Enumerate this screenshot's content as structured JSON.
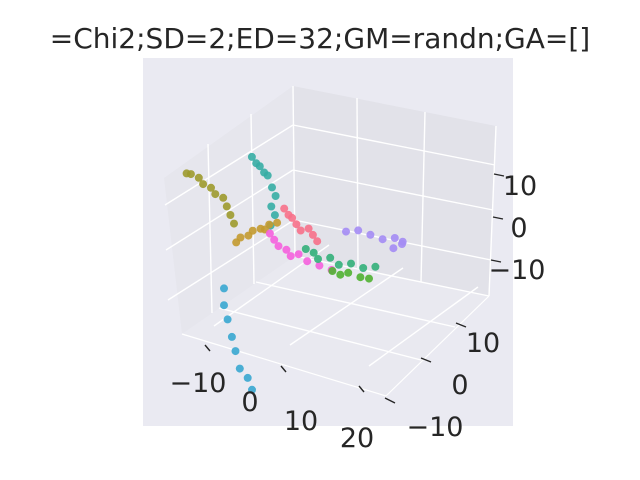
{
  "chart_data": {
    "type": "scatter",
    "projection": "3d",
    "title": "=Chi2;SD=2;ED=32;GM=randn;GA=[]",
    "axes": {
      "x": {
        "ticks": [
          -10,
          0,
          10,
          20
        ],
        "tick_labels": [
          "−10",
          "0",
          "10",
          "20"
        ]
      },
      "y": {
        "ticks": [
          -10,
          0,
          10
        ],
        "tick_labels": [
          "−10",
          "0",
          "10"
        ]
      },
      "z": {
        "ticks": [
          -10,
          0,
          10
        ],
        "tick_labels": [
          "−10",
          "0",
          "10"
        ]
      }
    },
    "grid": true,
    "legend": "none",
    "colors": {
      "pane_back": "#e3e3ea",
      "pane_side": "#e8e8ef",
      "pane_floor": "#ebebf2",
      "figure_face": "#eaeaf2",
      "grid": "#ffffff"
    },
    "series": [
      {
        "color": "#9d9a2c",
        "points": [
          [
            -14,
            -12,
            20
          ],
          [
            -13,
            -12,
            20
          ],
          [
            -12,
            -11,
            19
          ],
          [
            -11,
            -11,
            18
          ],
          [
            -10,
            -10,
            17
          ],
          [
            -9,
            -10,
            16
          ],
          [
            -8,
            -9,
            15
          ],
          [
            -8,
            -8,
            13
          ],
          [
            -8,
            -7,
            11
          ],
          [
            -8,
            -6,
            9
          ]
        ]
      },
      {
        "color": "#36ada4",
        "points": [
          [
            -3,
            -7,
            22
          ],
          [
            -2,
            -7,
            21
          ],
          [
            -2,
            -6,
            20
          ],
          [
            -1,
            -6,
            19
          ],
          [
            -1,
            -5,
            18
          ],
          [
            0,
            -5,
            16
          ],
          [
            0,
            -4,
            14
          ],
          [
            -1,
            -4,
            12
          ],
          [
            -1,
            -3,
            10
          ],
          [
            -2,
            -3,
            8
          ]
        ]
      },
      {
        "color": "#38a7d0",
        "points": [
          [
            -12,
            -4,
            -4
          ],
          [
            -12,
            -4,
            -7
          ],
          [
            -12,
            -3,
            -10
          ],
          [
            -11,
            -3,
            -13
          ],
          [
            -11,
            -2,
            -16
          ],
          [
            -10,
            -2,
            -19
          ],
          [
            -9,
            -1,
            -21
          ],
          [
            -8,
            -1,
            -23
          ]
        ]
      },
      {
        "color": "#c39a2f",
        "points": [
          [
            -10,
            -3,
            4
          ],
          [
            -9,
            -3,
            5
          ],
          [
            -8,
            -2,
            5
          ],
          [
            -7,
            -2,
            6
          ],
          [
            -6,
            -1,
            6
          ],
          [
            -5,
            -1,
            6
          ],
          [
            -4,
            -1,
            7
          ],
          [
            -3,
            0,
            7
          ]
        ]
      },
      {
        "color": "#f77189",
        "points": [
          [
            2,
            -4,
            12
          ],
          [
            3,
            -4,
            11
          ],
          [
            3,
            -3,
            10
          ],
          [
            4,
            -3,
            9
          ],
          [
            5,
            -3,
            8
          ],
          [
            6,
            -2,
            8
          ],
          [
            7,
            -2,
            7
          ],
          [
            8,
            -2,
            6
          ]
        ]
      },
      {
        "color": "#f561dd",
        "points": [
          [
            -3,
            -2,
            6
          ],
          [
            -2,
            -2,
            5
          ],
          [
            -1,
            -2,
            4
          ],
          [
            0,
            -1,
            3
          ],
          [
            1,
            -1,
            2
          ],
          [
            2,
            0,
            2
          ],
          [
            4,
            0,
            1
          ],
          [
            6,
            1,
            0
          ],
          [
            8,
            2,
            -1
          ]
        ]
      },
      {
        "color": "#33b07a",
        "points": [
          [
            2,
            2,
            2
          ],
          [
            3,
            3,
            1
          ],
          [
            4,
            3,
            0
          ],
          [
            6,
            4,
            0
          ],
          [
            8,
            4,
            -1
          ],
          [
            10,
            5,
            -1
          ],
          [
            12,
            6,
            -2
          ],
          [
            14,
            7,
            -2
          ]
        ]
      },
      {
        "color": "#a48cf4",
        "points": [
          [
            8,
            6,
            4
          ],
          [
            10,
            7,
            4
          ],
          [
            12,
            8,
            3
          ],
          [
            14,
            9,
            2
          ],
          [
            16,
            10,
            2
          ],
          [
            17,
            11,
            1
          ],
          [
            16,
            12,
            0
          ],
          [
            14,
            12,
            -1
          ]
        ]
      },
      {
        "color": "#50b131",
        "points": [
          [
            4,
            7,
            -4
          ],
          [
            5,
            8,
            -5
          ],
          [
            6,
            9,
            -5
          ],
          [
            8,
            10,
            -6
          ],
          [
            10,
            10,
            -6
          ]
        ]
      }
    ]
  }
}
